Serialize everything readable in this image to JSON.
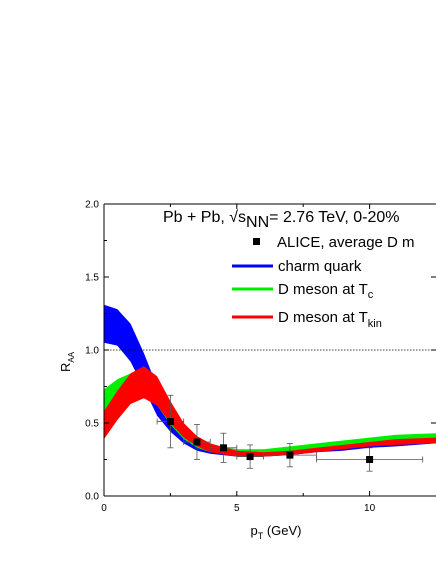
{
  "chart_data": {
    "type": "line",
    "title": "Pb + Pb, √s",
    "title_sub": "NN",
    "title_rest": "= 2.76 TeV, 0-20%",
    "xlabel": "p",
    "xlabel_sub": "T",
    "xlabel_rest": " (GeV)",
    "ylabel": "R",
    "ylabel_sub": "AA",
    "xlim": [
      0,
      12.5
    ],
    "ylim": [
      0,
      2.0
    ],
    "x_ticks": [
      "0",
      "5",
      "10"
    ],
    "y_ticks": [
      "0.0",
      "0.5",
      "1.0",
      "1.5",
      "2.0"
    ],
    "reference_line": 1.0,
    "series": [
      {
        "name": "charm quark",
        "color": "#0000ff",
        "kind": "band",
        "x": [
          0,
          0.5,
          1.0,
          1.5,
          2.0,
          2.5,
          3.0,
          3.5,
          4.0,
          5.0,
          6.0,
          7.0,
          8.0,
          9.0,
          10.0,
          11.0,
          12.5
        ],
        "upper": [
          1.31,
          1.28,
          1.18,
          0.98,
          0.75,
          0.56,
          0.44,
          0.37,
          0.33,
          0.3,
          0.31,
          0.32,
          0.34,
          0.35,
          0.37,
          0.38,
          0.4
        ],
        "lower": [
          1.05,
          1.03,
          0.92,
          0.74,
          0.55,
          0.44,
          0.36,
          0.31,
          0.29,
          0.27,
          0.27,
          0.28,
          0.3,
          0.31,
          0.33,
          0.34,
          0.36
        ]
      },
      {
        "name": "D meson at T",
        "name_sub": "c",
        "color": "#00ee00",
        "kind": "band",
        "x": [
          0,
          0.5,
          1.0,
          1.5,
          2.0,
          2.5,
          3.0,
          3.5,
          4.0,
          5.0,
          6.0,
          7.0,
          8.0,
          9.0,
          10.0,
          11.0,
          12.5
        ],
        "upper": [
          0.73,
          0.8,
          0.84,
          0.83,
          0.74,
          0.59,
          0.47,
          0.4,
          0.35,
          0.32,
          0.32,
          0.34,
          0.36,
          0.38,
          0.4,
          0.42,
          0.43
        ],
        "lower": [
          0.58,
          0.64,
          0.7,
          0.7,
          0.62,
          0.49,
          0.39,
          0.33,
          0.3,
          0.28,
          0.28,
          0.3,
          0.32,
          0.33,
          0.35,
          0.37,
          0.38
        ]
      },
      {
        "name": "D meson at T",
        "name_sub": "kin",
        "color": "#ff0000",
        "kind": "band",
        "x": [
          0,
          0.5,
          1.0,
          1.5,
          2.0,
          2.5,
          3.0,
          3.5,
          4.0,
          5.0,
          6.0,
          7.0,
          8.0,
          9.0,
          10.0,
          11.0,
          12.5
        ],
        "upper": [
          0.58,
          0.72,
          0.84,
          0.89,
          0.82,
          0.65,
          0.5,
          0.41,
          0.36,
          0.31,
          0.3,
          0.31,
          0.33,
          0.35,
          0.37,
          0.39,
          0.4
        ],
        "lower": [
          0.39,
          0.52,
          0.63,
          0.67,
          0.62,
          0.5,
          0.4,
          0.34,
          0.3,
          0.27,
          0.27,
          0.28,
          0.3,
          0.32,
          0.34,
          0.35,
          0.36
        ]
      },
      {
        "name": "ALICE, average D m",
        "color": "#000000",
        "kind": "points",
        "points": [
          {
            "x": 2.5,
            "y": 0.51,
            "xerr": 0.5,
            "yerr": 0.18
          },
          {
            "x": 3.5,
            "y": 0.37,
            "xerr": 0.5,
            "yerr": 0.12
          },
          {
            "x": 4.5,
            "y": 0.33,
            "xerr": 0.5,
            "yerr": 0.1
          },
          {
            "x": 5.5,
            "y": 0.27,
            "xerr": 0.5,
            "yerr": 0.08
          },
          {
            "x": 7.0,
            "y": 0.28,
            "xerr": 1.0,
            "yerr": 0.08
          },
          {
            "x": 10.0,
            "y": 0.25,
            "xerr": 2.0,
            "yerr": 0.08
          }
        ]
      }
    ]
  }
}
